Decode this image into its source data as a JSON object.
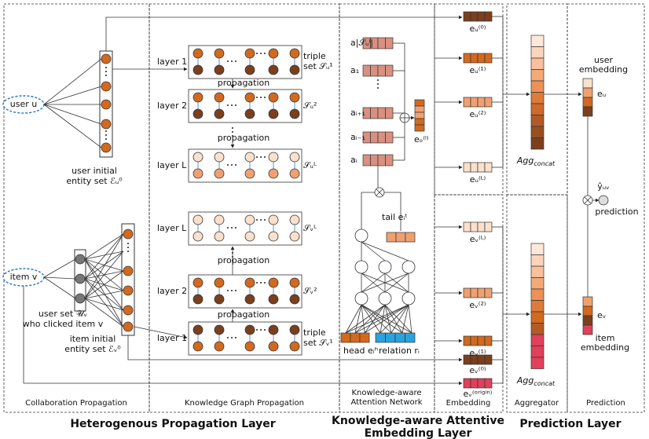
{
  "panels": {
    "collaboration": "Collaboration Propagation",
    "kg": "Knowledge Graph Propagation",
    "attention": [
      "Knowledge-aware",
      "Attention Network"
    ],
    "embedding": "Embedding",
    "aggregator": "Aggregator",
    "prediction": "Prediction"
  },
  "layers": {
    "heterogenous": "Heterogenous  Propagation  Layer",
    "attentive": [
      "Knowledge-aware  Attentive",
      "Embedding  Layer"
    ],
    "prediction": "Prediction Layer"
  },
  "collab": {
    "user": "user u",
    "item": "item v",
    "user_set_label": [
      "user initial",
      "entity set ℰᵤ⁰"
    ],
    "clicked": [
      "user set 𝒰ᵥ",
      "who clicked item v"
    ],
    "item_set_label": [
      "item initial",
      "entity set ℰᵥ⁰"
    ]
  },
  "kg": {
    "rows": [
      {
        "layer": "layer 1",
        "set": [
          "triple",
          "set 𝒮ᵤ¹"
        ]
      },
      {
        "layer": "layer 2",
        "set": [
          "𝒮ᵤ²"
        ]
      },
      {
        "layer": "layer L",
        "set": [
          "𝒮ᵤᴸ"
        ]
      },
      {
        "layer": "layer L",
        "set": [
          "𝒮ᵥᴸ"
        ]
      },
      {
        "layer": "layer 2",
        "set": [
          "𝒮ᵥ²"
        ]
      },
      {
        "layer": "layer 1",
        "set": [
          "triple",
          "set 𝒮ᵥ¹"
        ]
      }
    ],
    "propagation": [
      "propagation",
      "propagation",
      "propagation",
      "propagation"
    ]
  },
  "attention": {
    "weights": [
      "a|𝒮ᵤˡ|",
      "a₁",
      "aᵢ₊₁",
      "aᵢ₋₁",
      "aᵢ"
    ],
    "output": "eₒ⁽ˡ⁾",
    "tail": "tail eᵢᵗ",
    "head": "head eᵢʰ",
    "relation": "relation rᵢ"
  },
  "embedding": [
    "eᵤ⁽⁰⁾",
    "eᵤ⁽¹⁾",
    "eᵤ⁽²⁾",
    "eᵤ⁽ᴸ⁾",
    "eᵥ⁽ᴸ⁾",
    "eᵥ⁽²⁾",
    "eᵥ⁽¹⁾",
    "eᵥ⁽⁰⁾",
    "eᵥ⁽ᵒʳⁱᵍⁱⁿ⁾"
  ],
  "aggregator": [
    {
      "base": "Agg",
      "sub": "concat"
    },
    {
      "base": "Agg",
      "sub": "concat"
    }
  ],
  "prediction": {
    "user": [
      "user",
      "embedding"
    ],
    "eu": "eᵤ",
    "yhat": "ŷᵤᵥ",
    "prediction": "prediction",
    "ev": "eᵥ",
    "item": [
      "item",
      "embedding"
    ]
  }
}
